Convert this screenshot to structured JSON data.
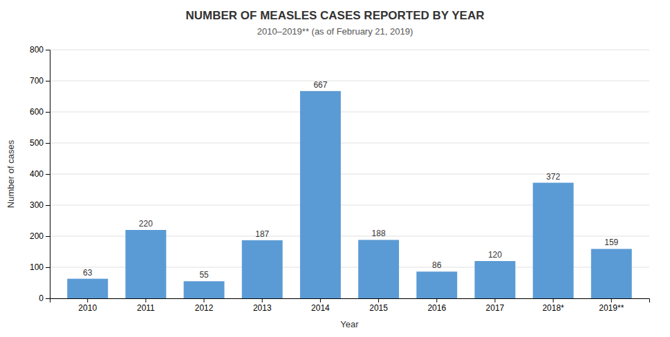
{
  "chart_data": {
    "type": "bar",
    "title": "NUMBER OF MEASLES CASES REPORTED BY YEAR",
    "subtitle": "2010–2019** (as of February 21, 2019)",
    "xlabel": "Year",
    "ylabel": "Number of cases",
    "categories": [
      "2010",
      "2011",
      "2012",
      "2013",
      "2014",
      "2015",
      "2016",
      "2017",
      "2018*",
      "2019**"
    ],
    "values": [
      63,
      220,
      55,
      187,
      667,
      188,
      86,
      120,
      372,
      159
    ],
    "color": "#5b9bd5",
    "ylim": [
      0,
      800
    ],
    "yticks": [
      0,
      100,
      200,
      300,
      400,
      500,
      600,
      700,
      800
    ],
    "grid": true,
    "data_labels": true
  }
}
